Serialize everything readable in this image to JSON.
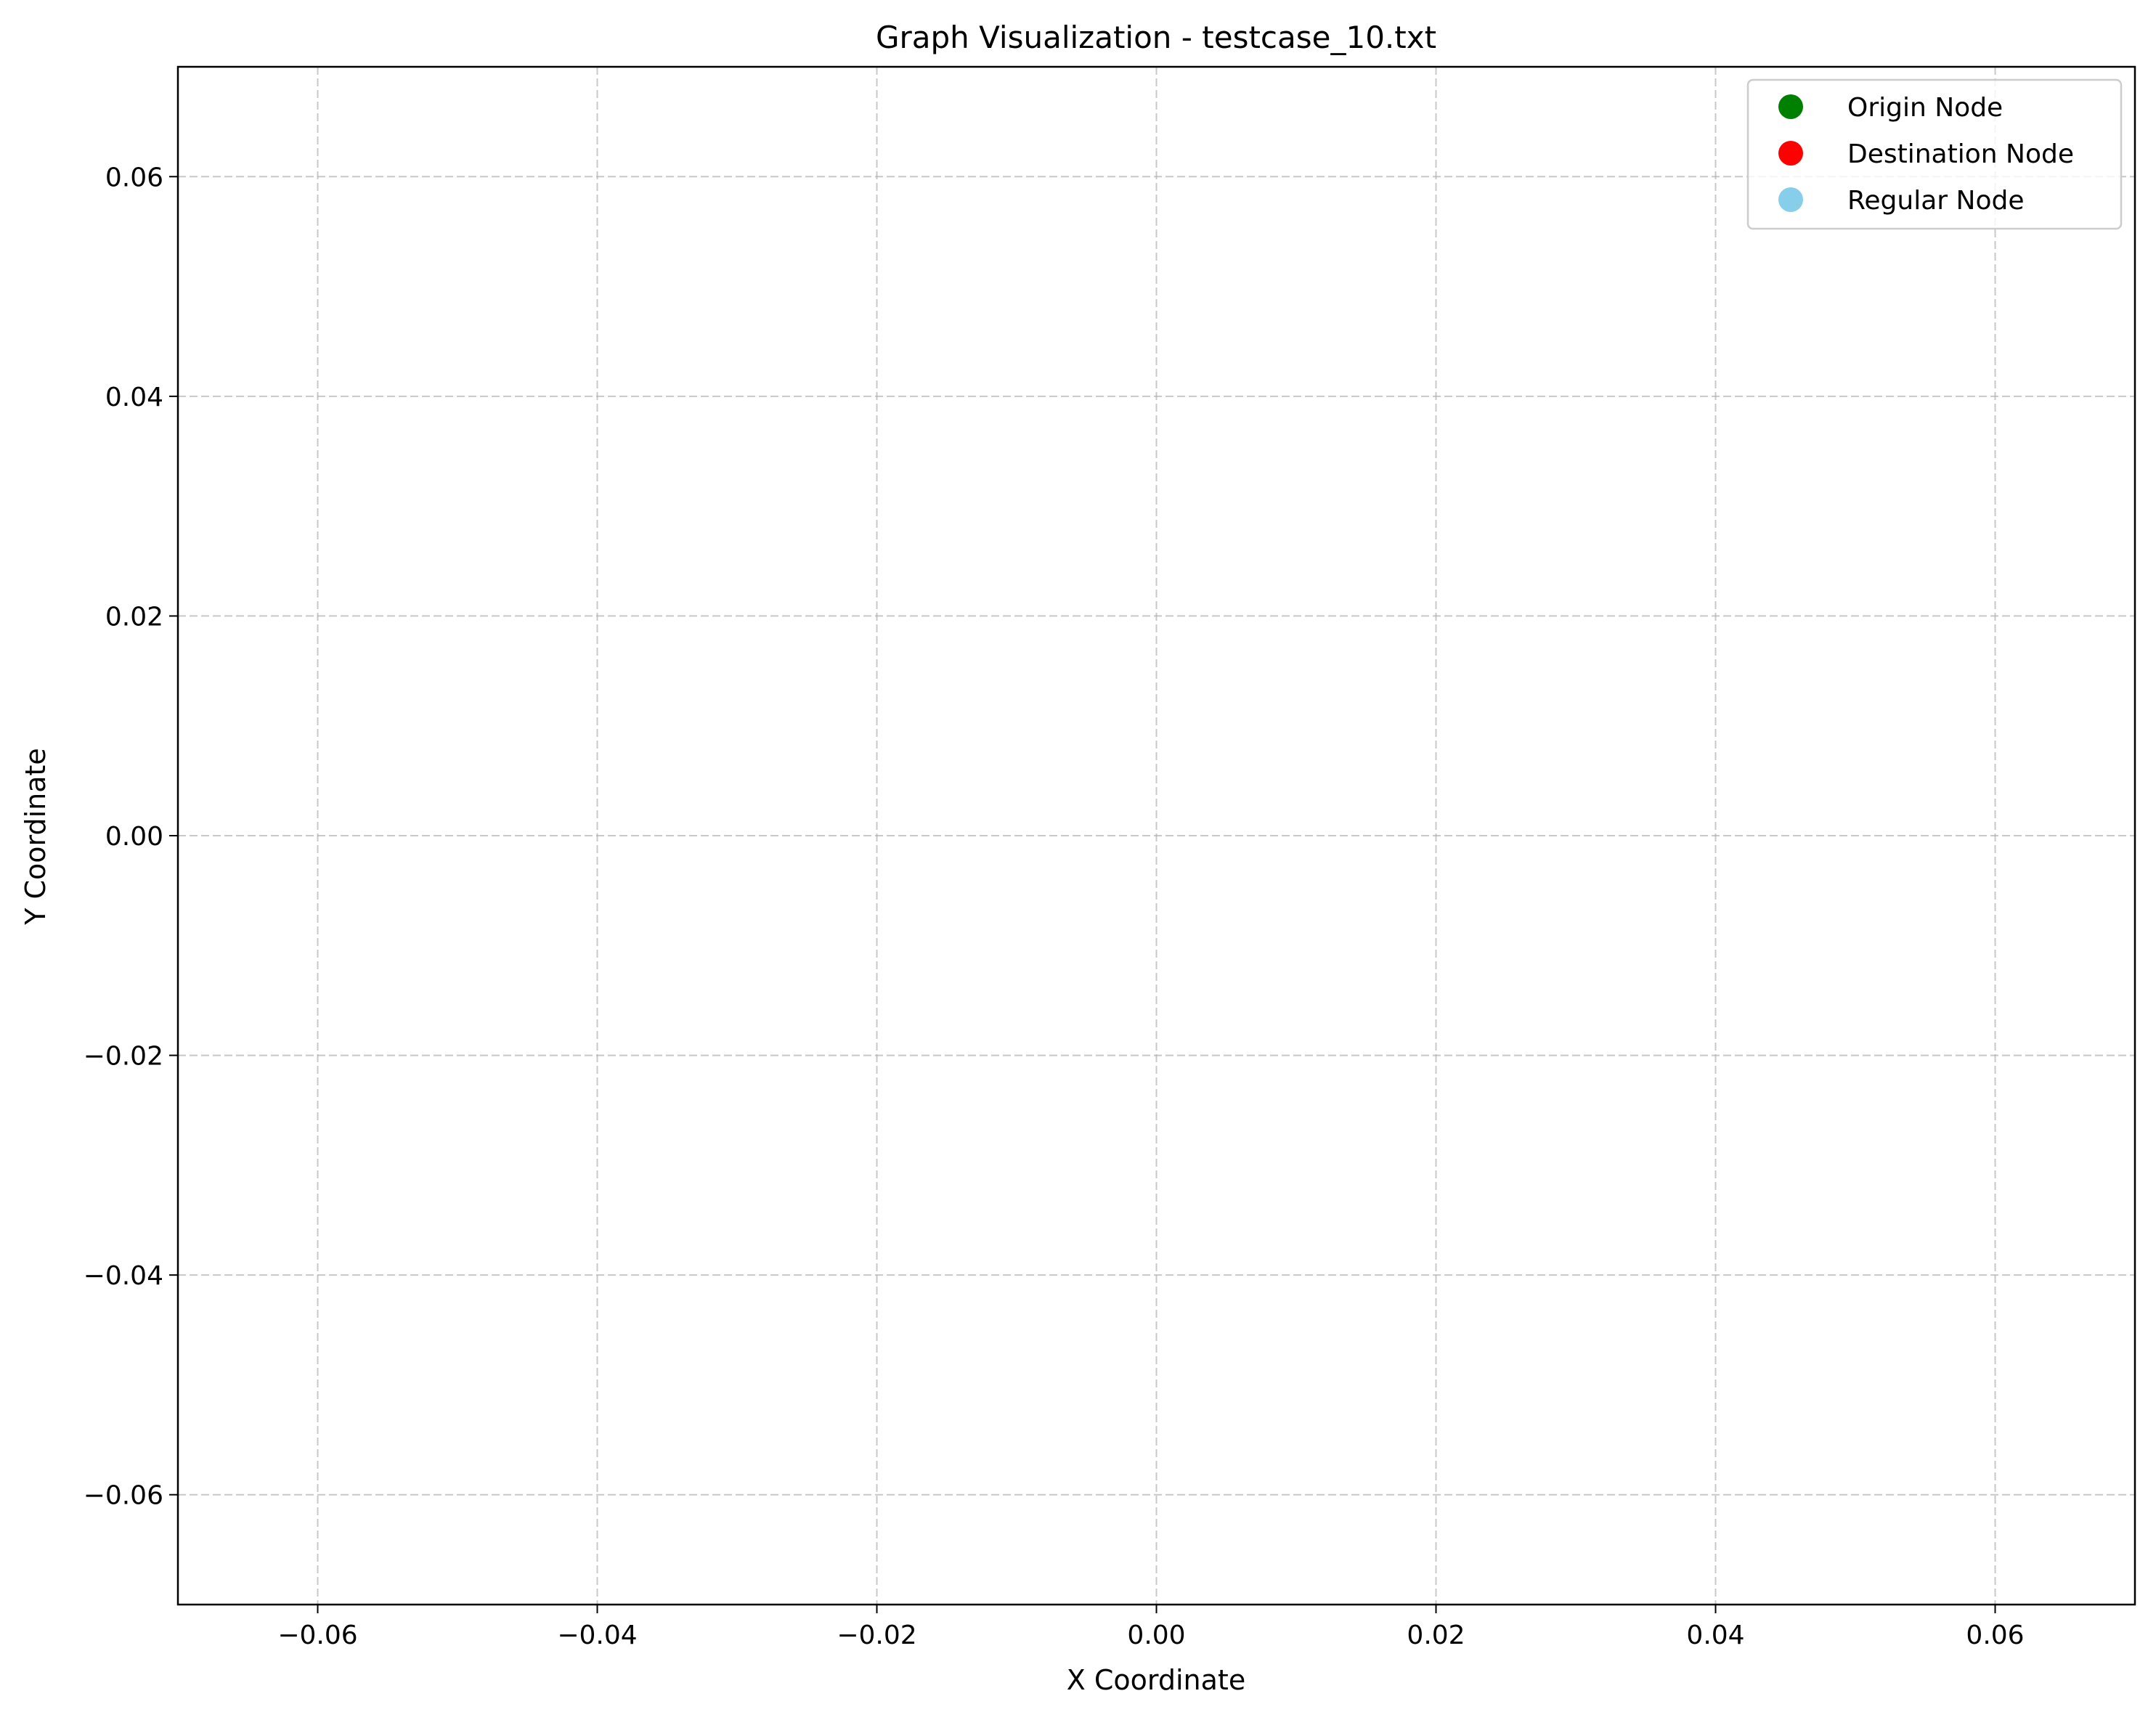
{
  "chart_data": {
    "type": "scatter",
    "title": "Graph Visualization - testcase_10.txt",
    "xlabel": "X Coordinate",
    "ylabel": "Y Coordinate",
    "xlim": [
      -0.07,
      0.07
    ],
    "ylim": [
      -0.07,
      0.07
    ],
    "xticks": [
      -0.06,
      -0.04,
      -0.02,
      0.0,
      0.02,
      0.04,
      0.06
    ],
    "yticks": [
      -0.06,
      -0.04,
      -0.02,
      0.0,
      0.02,
      0.04,
      0.06
    ],
    "xtick_labels": [
      "−0.06",
      "−0.04",
      "−0.02",
      "0.00",
      "0.02",
      "0.04",
      "0.06"
    ],
    "ytick_labels": [
      "−0.06",
      "−0.04",
      "−0.02",
      "0.00",
      "0.02",
      "0.04",
      "0.06"
    ],
    "grid": true,
    "grid_style": "dashed",
    "legend_position": "top-right",
    "series": [
      {
        "name": "Origin Node",
        "color": "#008000",
        "points": []
      },
      {
        "name": "Destination Node",
        "color": "#ff0000",
        "points": []
      },
      {
        "name": "Regular Node",
        "color": "#87ceeb",
        "points": []
      }
    ]
  }
}
